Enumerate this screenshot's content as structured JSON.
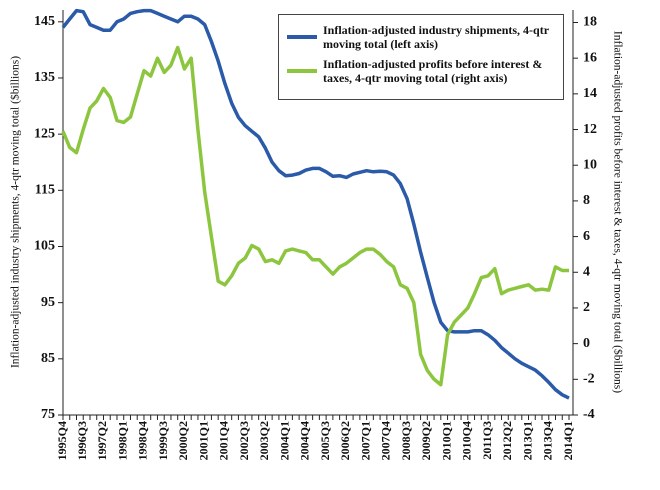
{
  "chart_data": {
    "type": "line",
    "ylabel": "Inflation-adjusted industry shipments, 4-qtr moving total ($billions)",
    "y2label": "Inflation-adjusted profits before interest & taxes, 4-qtr moving total ($billions)",
    "categories": [
      "1995Q4",
      null,
      null,
      "1996Q3",
      null,
      null,
      "1997Q2",
      null,
      null,
      "1998Q1",
      null,
      null,
      "1998Q4",
      null,
      null,
      "1999Q3",
      null,
      null,
      "2000Q2",
      null,
      null,
      "2001Q1",
      null,
      null,
      "2001Q4",
      null,
      null,
      "2002Q3",
      null,
      null,
      "2003Q2",
      null,
      null,
      "2004Q1",
      null,
      null,
      "2004Q4",
      null,
      null,
      "2005Q3",
      null,
      null,
      "2006Q2",
      null,
      null,
      "2007Q1",
      null,
      null,
      "2007Q4",
      null,
      null,
      "2008Q3",
      null,
      null,
      "2009Q2",
      null,
      null,
      "2010Q1",
      null,
      null,
      "2010Q4",
      null,
      null,
      "2011Q3",
      null,
      null,
      "2012Q2",
      null,
      null,
      "2013Q1",
      null,
      null,
      "2013Q4",
      null,
      null,
      "2014Q1"
    ],
    "series": [
      {
        "name": "Inflation-adjusted industry shipments, 4-qtr moving total (left axis)",
        "color": "#2b5aa8",
        "axis": "y",
        "values": [
          144,
          145.5,
          147,
          146.8,
          144.5,
          144,
          143.5,
          143.5,
          145,
          145.5,
          146.5,
          146.8,
          147,
          147,
          146.5,
          146,
          145.5,
          145,
          146,
          146,
          145.5,
          144.5,
          141.5,
          138,
          134,
          130.5,
          128,
          126.5,
          125.5,
          124.5,
          122.5,
          120,
          118.5,
          117.6,
          117.7,
          118,
          118.6,
          118.9,
          118.9,
          118.3,
          117.5,
          117.6,
          117.3,
          117.9,
          118.2,
          118.5,
          118.3,
          118.4,
          118.3,
          117.7,
          116.2,
          113.5,
          109,
          104,
          99.5,
          95,
          91.5,
          90,
          89.8,
          89.8,
          89.8,
          90,
          90,
          89.3,
          88.3,
          87,
          86,
          85,
          84.2,
          83.6,
          83,
          82,
          80.8,
          79.5,
          78.6,
          78
        ]
      },
      {
        "name": "Inflation-adjusted profits before interest & taxes, 4-qtr moving total (right axis)",
        "color": "#8cc63f",
        "axis": "y2",
        "values": [
          11.9,
          11,
          10.7,
          12,
          13.2,
          13.6,
          14.3,
          13.8,
          12.5,
          12.4,
          12.7,
          14,
          15.3,
          15,
          16,
          15.2,
          15.6,
          16.6,
          15.4,
          16,
          12,
          8.5,
          6,
          3.5,
          3.3,
          3.8,
          4.5,
          4.8,
          5.5,
          5.3,
          4.6,
          4.7,
          4.5,
          5.2,
          5.3,
          5.2,
          5.1,
          4.7,
          4.7,
          4.3,
          3.9,
          4.3,
          4.5,
          4.8,
          5.1,
          5.3,
          5.3,
          5,
          4.6,
          4.3,
          3.3,
          3.1,
          2.3,
          -0.6,
          -1.5,
          -2,
          -2.3,
          0.5,
          1.2,
          1.6,
          2,
          2.8,
          3.7,
          3.8,
          4.2,
          2.8,
          3,
          3.1,
          3.2,
          3.3,
          3,
          3.05,
          3,
          4.3,
          4.1,
          4.1
        ]
      }
    ],
    "ylim": [
      75,
      147.1
    ],
    "yticks": [
      75,
      85,
      95,
      105,
      115,
      125,
      135,
      145
    ],
    "y2lim": [
      -4,
      18.7
    ],
    "y2ticks": [
      -4,
      -2,
      0,
      2,
      4,
      6,
      8,
      10,
      12,
      14,
      16,
      18
    ],
    "legend": "upper right",
    "grid": false
  }
}
